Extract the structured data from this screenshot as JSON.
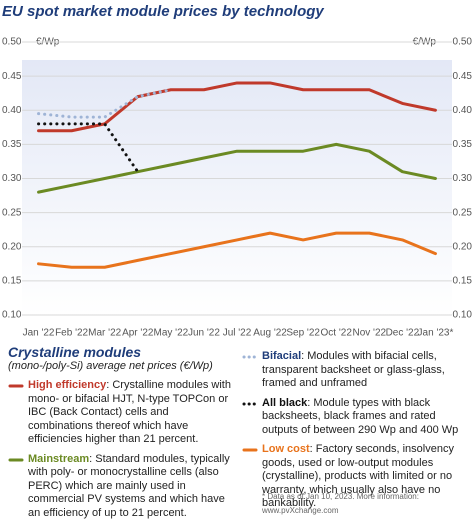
{
  "chart_data": {
    "type": "line",
    "title": "EU spot market module prices by technology",
    "y_unit": "€/Wp",
    "categories": [
      "Jan '22",
      "Feb '22",
      "Mar '22",
      "Apr '22",
      "May '22",
      "Jun '22",
      "Jul '22",
      "Aug '22",
      "Sep '22",
      "Oct '22",
      "Nov '22",
      "Dec '22",
      "Jan '23*"
    ],
    "ylim": [
      0.1,
      0.5
    ],
    "yticks": [
      {
        "value": 0.5,
        "label": "0.50"
      },
      {
        "value": 0.45,
        "label": "0.45"
      },
      {
        "value": 0.4,
        "label": "0.40"
      },
      {
        "value": 0.35,
        "label": "0.35"
      },
      {
        "value": 0.3,
        "label": "0.30"
      },
      {
        "value": 0.25,
        "label": "0.25"
      },
      {
        "value": 0.2,
        "label": "0.20"
      },
      {
        "value": 0.15,
        "label": "0.15"
      },
      {
        "value": 0.1,
        "label": "0.10"
      }
    ],
    "y2lim": [
      0.1,
      0.5
    ],
    "y2ticks": [
      {
        "value": 0.5,
        "label": "0.50"
      },
      {
        "value": 0.45,
        "label": "0.45"
      },
      {
        "value": 0.4,
        "label": "0.40"
      },
      {
        "value": 0.35,
        "label": "0.35"
      },
      {
        "value": 0.3,
        "label": "0.30"
      },
      {
        "value": 0.25,
        "label": "0.25"
      },
      {
        "value": 0.2,
        "label": "0.20"
      },
      {
        "value": 0.15,
        "label": "0.15"
      },
      {
        "value": 0.1,
        "label": "0.10"
      }
    ],
    "grid": true,
    "legend_heading": "Crystalline modules",
    "legend_subheading": "(mono-/poly-Si) average net prices (€/Wp)",
    "series": [
      {
        "name": "High efficiency",
        "color": "#c0392b",
        "style": "solid",
        "description": ": Crystalline modules with mono- or bifacial HJT, N-type TOPCon or IBC (Back Contact) cells and combinations thereof which have efficiencies higher than 21 percent.",
        "values": [
          0.37,
          0.37,
          0.38,
          0.42,
          0.43,
          0.43,
          0.44,
          0.44,
          0.43,
          0.43,
          0.43,
          0.41,
          0.4
        ]
      },
      {
        "name": "Mainstream",
        "color": "#6b8a23",
        "style": "solid",
        "description": ": Standard modules, typically with poly- or monocrystalline cells (also PERC) which are mainly used in commercial PV systems and which have an efficiency of up to 21 percent.",
        "values": [
          0.28,
          0.29,
          0.3,
          0.31,
          0.32,
          0.33,
          0.34,
          0.34,
          0.34,
          0.35,
          0.34,
          0.31,
          0.3
        ]
      },
      {
        "name": "Bifacial",
        "color": "#9fb4d6",
        "style": "dotted",
        "description": ": Modules with bifacial cells, transparent backsheet or glass-glass, framed and unframed",
        "values": [
          0.395,
          0.39,
          0.39,
          0.42,
          0.43,
          null,
          null,
          null,
          null,
          null,
          null,
          null,
          null
        ]
      },
      {
        "name": "All black",
        "color": "#111111",
        "style": "dotted",
        "description": ": Module types with black backsheets, black frames and rated outputs of between 290 Wp and 400 Wp",
        "values": [
          0.38,
          0.38,
          0.38,
          0.31,
          null,
          null,
          null,
          null,
          null,
          null,
          null,
          null,
          null
        ]
      },
      {
        "name": "Low cost",
        "color": "#e8731c",
        "style": "solid",
        "description": ": Factory seconds, insolvency goods, used or low-output modules (crystalline), products with limited or no warranty, which usually also have no bankability.",
        "values": [
          0.175,
          0.17,
          0.17,
          0.18,
          0.19,
          0.2,
          0.21,
          0.22,
          0.21,
          0.22,
          0.22,
          0.21,
          0.19
        ]
      }
    ],
    "footnote": "* Data as of Jan 10, 2023. More information: www.pvXchange.com"
  }
}
